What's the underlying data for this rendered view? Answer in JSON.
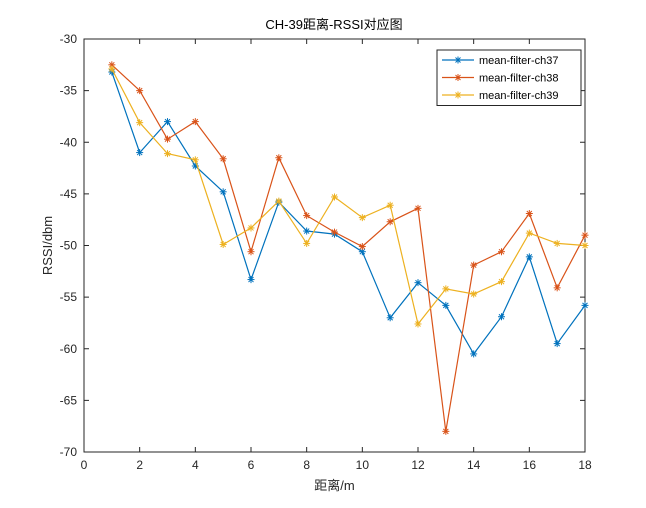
{
  "chart_data": {
    "type": "line",
    "title": "CH-39距离-RSSI对应图",
    "xlabel": "距离/m",
    "ylabel": "RSSI/dbm",
    "xlim": [
      0,
      18
    ],
    "ylim": [
      -70,
      -30
    ],
    "x_ticks": [
      0,
      2,
      4,
      6,
      8,
      10,
      12,
      14,
      16,
      18
    ],
    "y_ticks": [
      -70,
      -65,
      -60,
      -55,
      -50,
      -45,
      -40,
      -35,
      -30
    ],
    "x_tick_labels": [
      "0",
      "2",
      "4",
      "6",
      "8",
      "10",
      "12",
      "14",
      "16",
      "18"
    ],
    "y_tick_labels": [
      "-70",
      "-65",
      "-60",
      "-55",
      "-50",
      "-45",
      "-40",
      "-35",
      "-30"
    ],
    "grid": false,
    "legend_position": "top-right",
    "marker": "asterisk",
    "x": [
      1,
      2,
      3,
      4,
      5,
      6,
      7,
      8,
      9,
      10,
      11,
      12,
      13,
      14,
      15,
      16,
      17,
      18
    ],
    "series": [
      {
        "name": "mean-filter-ch37",
        "color": "#0072BD",
        "values": [
          -33.2,
          -41.0,
          -38.0,
          -42.3,
          -44.8,
          -53.3,
          -45.8,
          -48.6,
          -48.9,
          -50.6,
          -57.0,
          -53.6,
          -55.8,
          -60.5,
          -56.9,
          -51.1,
          -59.5,
          -55.8
        ]
      },
      {
        "name": "mean-filter-ch38",
        "color": "#D95319",
        "values": [
          -32.5,
          -35.0,
          -39.7,
          -38.0,
          -41.6,
          -50.6,
          -41.5,
          -47.1,
          -48.7,
          -50.1,
          -47.7,
          -46.4,
          -68.0,
          -51.9,
          -50.6,
          -46.9,
          -54.1,
          -49.0
        ]
      },
      {
        "name": "mean-filter-ch39",
        "color": "#EDB120",
        "values": [
          -32.9,
          -38.1,
          -41.1,
          -41.7,
          -49.9,
          -48.3,
          -45.7,
          -49.8,
          -45.3,
          -47.3,
          -46.1,
          -57.6,
          -54.2,
          -54.7,
          -53.5,
          -48.8,
          -49.8,
          -50.0
        ]
      }
    ]
  }
}
